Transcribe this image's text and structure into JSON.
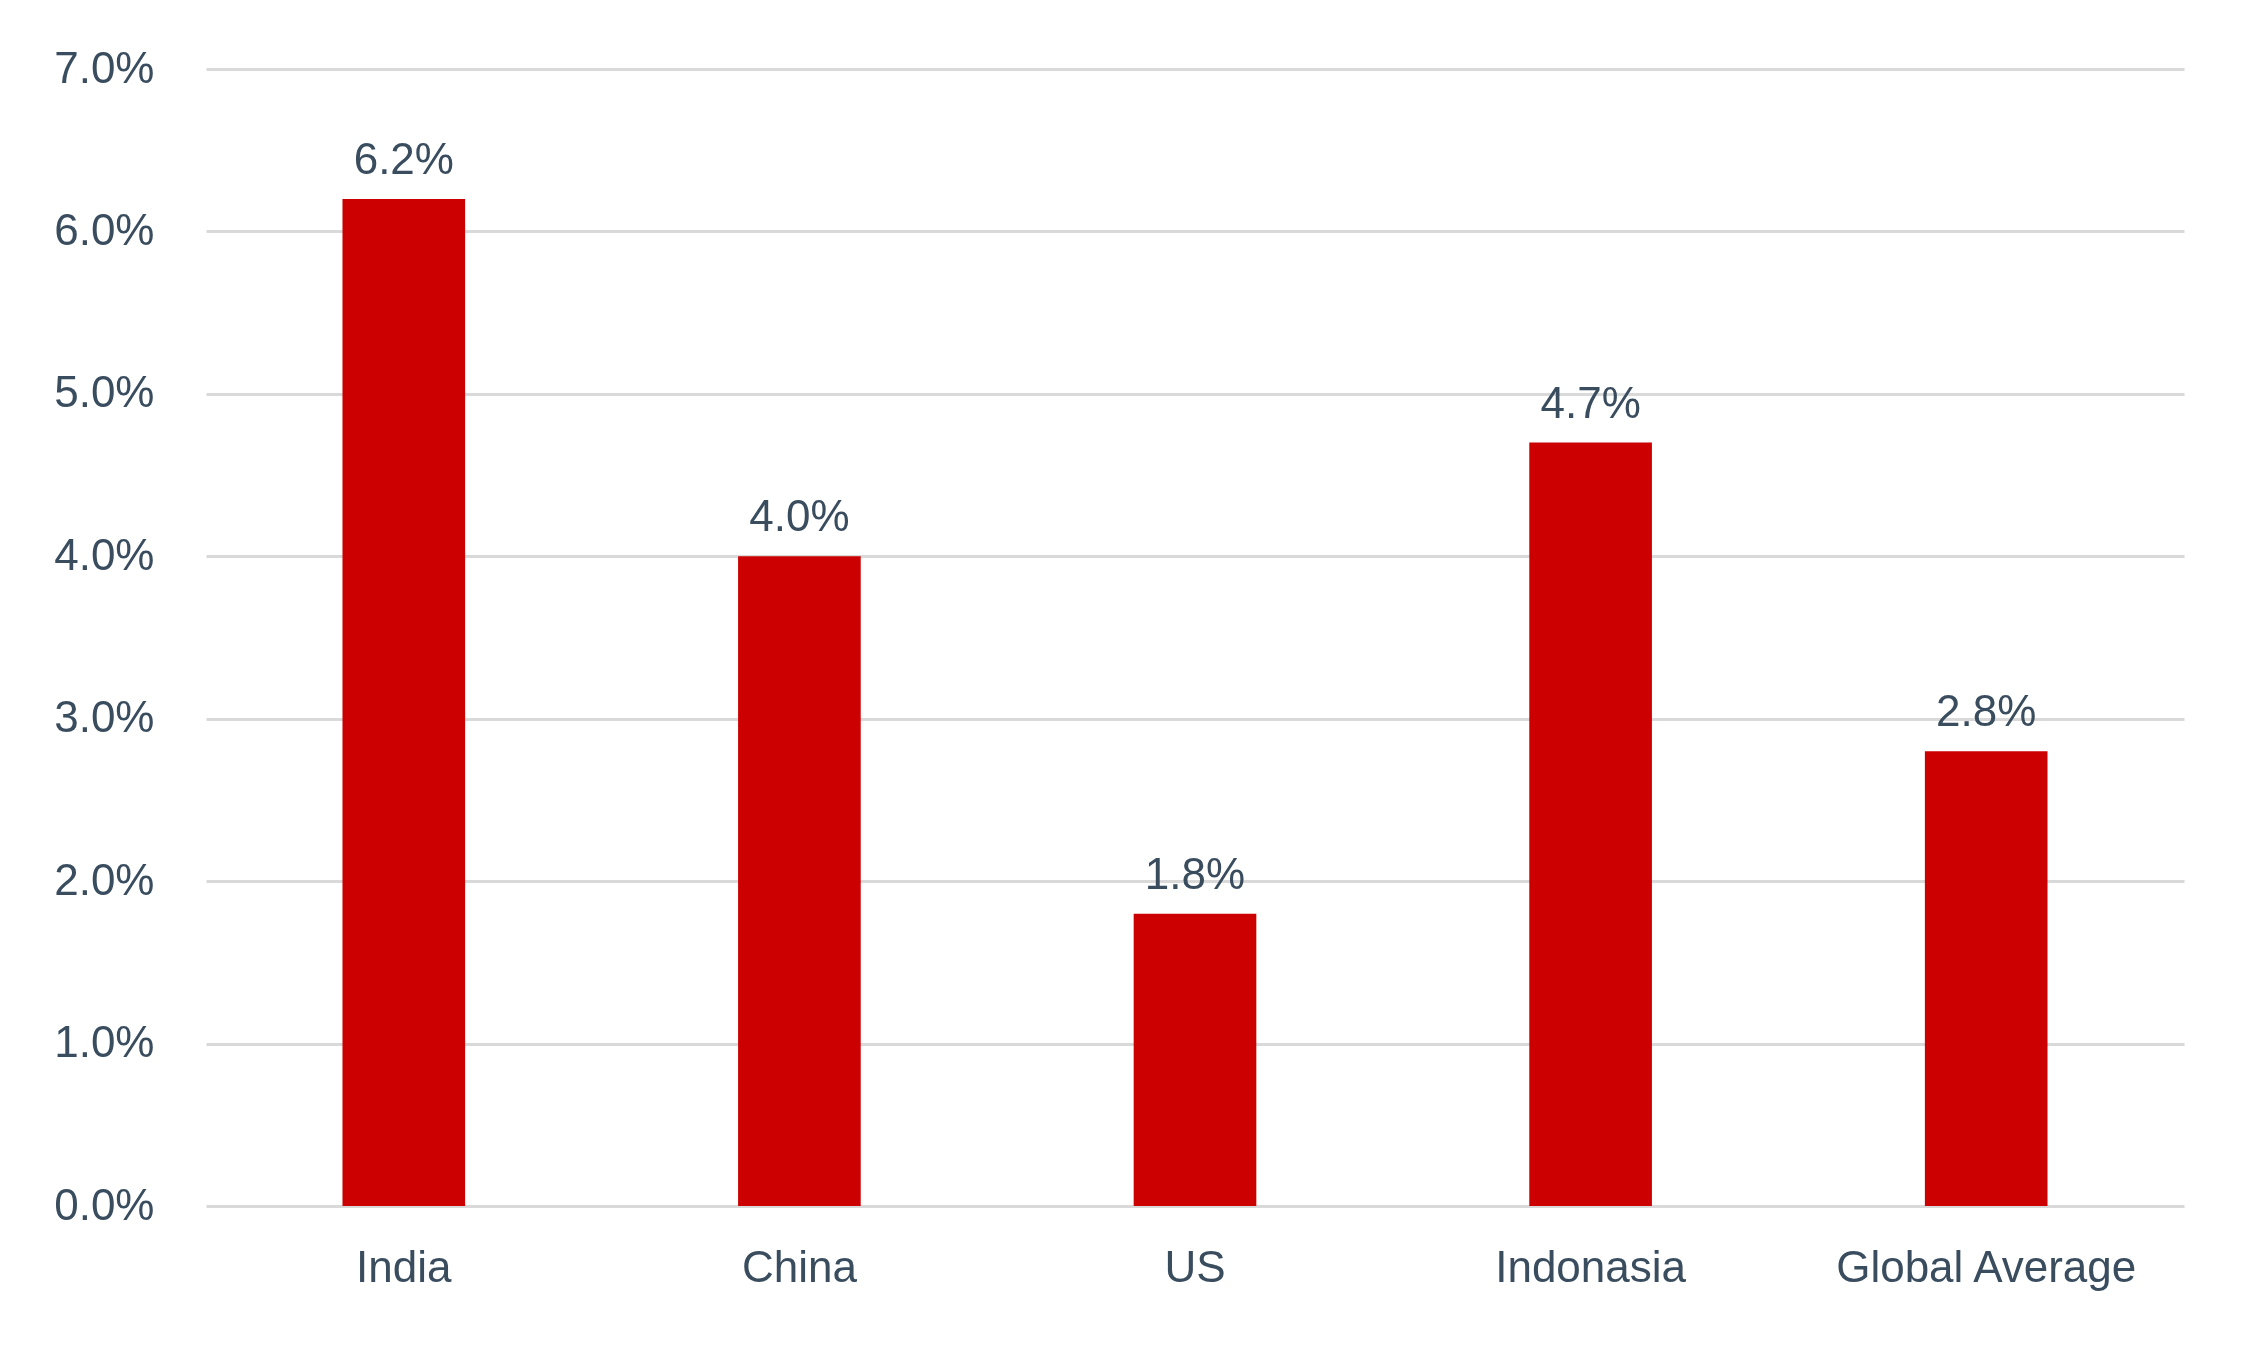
{
  "chart_data": {
    "type": "bar",
    "categories": [
      "India",
      "China",
      "US",
      "Indonasia",
      "Global Average"
    ],
    "values": [
      6.2,
      4.0,
      1.8,
      4.7,
      2.8
    ],
    "value_labels": [
      "6.2%",
      "4.0%",
      "1.8%",
      "4.7%",
      "2.8%"
    ],
    "color": "#cc0000",
    "ylim": [
      0,
      7
    ],
    "yticks": [
      {
        "value": 0,
        "label": "0.0%"
      },
      {
        "value": 1,
        "label": "1.0%"
      },
      {
        "value": 2,
        "label": "2.0%"
      },
      {
        "value": 3,
        "label": "3.0%"
      },
      {
        "value": 4,
        "label": "4.0%"
      },
      {
        "value": 5,
        "label": "5.0%"
      },
      {
        "value": 6,
        "label": "6.0%"
      },
      {
        "value": 7,
        "label": "7.0%"
      }
    ],
    "grid": "y"
  }
}
